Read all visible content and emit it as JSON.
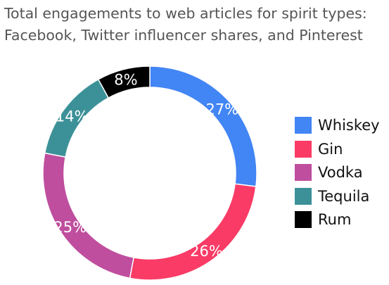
{
  "title_lines": [
    "Total engagements to web articles for spirit types:",
    "Facebook, Twitter influencer shares, and Pinterest"
  ],
  "chart_data": {
    "type": "pie",
    "variant": "donut",
    "title": "Total engagements to web articles for spirit types: Facebook, Twitter influencer shares, and Pinterest",
    "unit": "%",
    "categories": [
      "Whiskey",
      "Gin",
      "Vodka",
      "Tequila",
      "Rum"
    ],
    "values": [
      27,
      26,
      25,
      14,
      8
    ],
    "data_labels": [
      "27%",
      "26%",
      "25%",
      "14%",
      "8%"
    ],
    "colors": [
      "#4285f4",
      "#fa3b66",
      "#bf4e9e",
      "#3c9198",
      "#000000"
    ],
    "legend_position": "right"
  }
}
